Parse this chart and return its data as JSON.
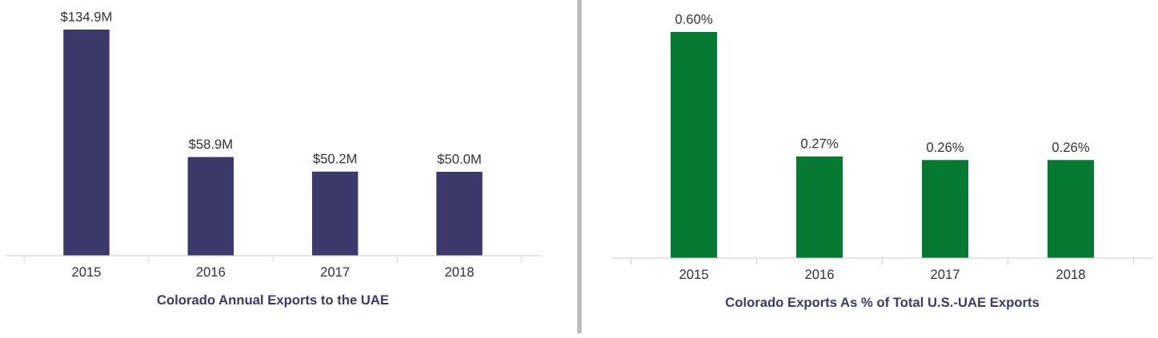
{
  "chart_data": [
    {
      "type": "bar",
      "title": "Colorado Annual Exports to the UAE",
      "categories": [
        "2015",
        "2016",
        "2017",
        "2018"
      ],
      "series": [
        {
          "color": "#3c3a6a",
          "values": [
            134.9,
            58.9,
            50.2,
            50.0
          ],
          "value_labels": [
            "$134.9M",
            "$58.9M",
            "$50.2M",
            "$50.0M"
          ]
        }
      ],
      "grid": false,
      "legend": false
    },
    {
      "type": "bar",
      "title": "Colorado Exports As % of Total U.S.-UAE Exports",
      "categories": [
        "2015",
        "2016",
        "2017",
        "2018"
      ],
      "series": [
        {
          "color": "#067a33",
          "values": [
            0.6,
            0.27,
            0.26,
            0.26
          ],
          "value_labels": [
            "0.60%",
            "0.27%",
            "0.26%",
            "0.26%"
          ]
        }
      ],
      "grid": false,
      "legend": false
    }
  ]
}
